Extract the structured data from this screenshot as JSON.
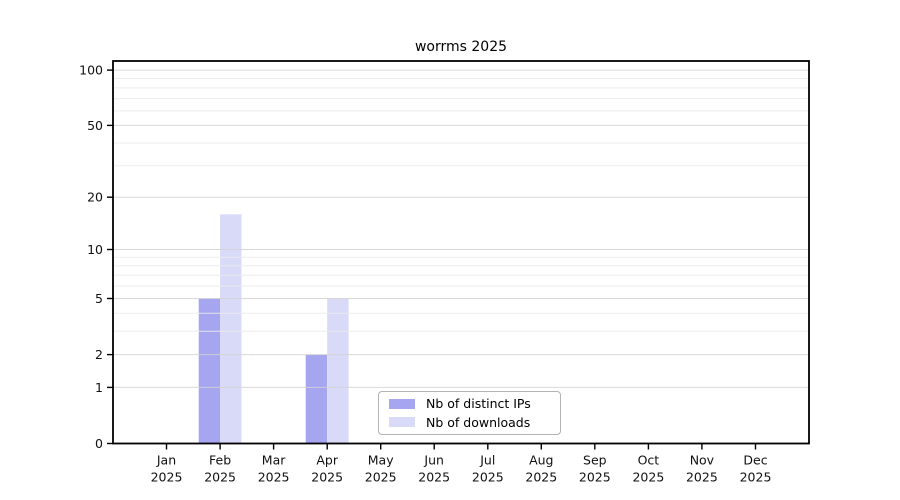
{
  "title": "worrms 2025",
  "legend": {
    "items": [
      {
        "label": "Nb of distinct IPs"
      },
      {
        "label": "Nb of downloads"
      }
    ]
  },
  "chart_data": {
    "type": "bar",
    "title": "worrms 2025",
    "xlabel": "",
    "ylabel": "",
    "scale": "log10(1+y)",
    "categories": [
      "Jan\n2025",
      "Feb\n2025",
      "Mar\n2025",
      "Apr\n2025",
      "May\n2025",
      "Jun\n2025",
      "Jul\n2025",
      "Aug\n2025",
      "Sep\n2025",
      "Oct\n2025",
      "Nov\n2025",
      "Dec\n2025"
    ],
    "series": [
      {
        "name": "Nb of distinct IPs",
        "color": "#a5a5f0",
        "values": [
          0,
          5,
          0,
          2,
          0,
          0,
          0,
          0,
          0,
          0,
          0,
          0
        ]
      },
      {
        "name": "Nb of downloads",
        "color": "#d9d9f8",
        "values": [
          0,
          16,
          0,
          5,
          0,
          0,
          0,
          0,
          0,
          0,
          0,
          0
        ]
      }
    ],
    "ylim": [
      0,
      112
    ],
    "yticks_major": [
      0,
      1,
      2,
      5,
      10,
      20,
      50,
      100
    ],
    "yticks_minor": [
      3,
      4,
      6,
      7,
      8,
      9,
      30,
      40,
      60,
      70,
      80,
      90
    ],
    "grid": true,
    "legend_position": "lower center",
    "colors": {
      "grid_major": "#d2d2d2",
      "grid_minor": "#ebebeb",
      "frame": "#000000",
      "background": "#ffffff"
    }
  }
}
